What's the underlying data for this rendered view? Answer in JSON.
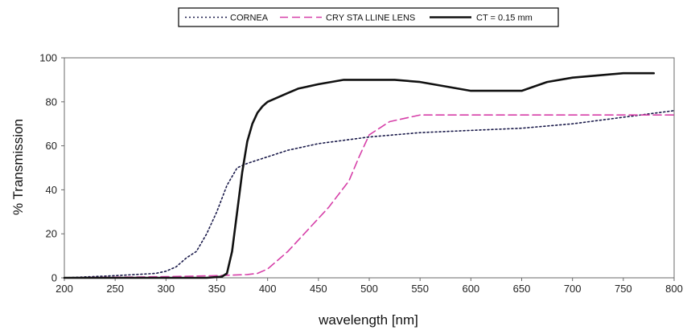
{
  "chart_data": {
    "type": "line",
    "xlabel": "wavelength [nm]",
    "ylabel": "% Transmission",
    "xlim": [
      200,
      800
    ],
    "ylim": [
      0,
      100
    ],
    "xticks": [
      "200",
      "250",
      "300",
      "350",
      "400",
      "450",
      "500",
      "550",
      "600",
      "650",
      "700",
      "750",
      "800"
    ],
    "yticks": [
      "0",
      "20",
      "40",
      "60",
      "80",
      "100"
    ],
    "grid": false,
    "legend_position": "top",
    "series": [
      {
        "name": "CORNEA",
        "color": "#1a1a4a",
        "style": "dotted",
        "x": [
          200,
          250,
          290,
          300,
          310,
          320,
          330,
          340,
          350,
          360,
          370,
          380,
          400,
          420,
          450,
          500,
          550,
          600,
          650,
          700,
          750,
          800
        ],
        "y": [
          0,
          1,
          2,
          3,
          5,
          9,
          12,
          20,
          30,
          42,
          50,
          52,
          55,
          58,
          61,
          64,
          66,
          67,
          68,
          70,
          73,
          76
        ]
      },
      {
        "name": "CRY STA LLINE LENS",
        "color": "#d63fa8",
        "style": "dashed",
        "x": [
          200,
          300,
          350,
          380,
          390,
          400,
          420,
          440,
          460,
          480,
          490,
          500,
          520,
          550,
          600,
          700,
          800
        ],
        "y": [
          0,
          0.5,
          1,
          1.5,
          2,
          4,
          12,
          22,
          32,
          44,
          55,
          65,
          71,
          74,
          74,
          74,
          74
        ]
      },
      {
        "name": "CT = 0.15 mm",
        "color": "#111111",
        "style": "solid",
        "x": [
          200,
          340,
          355,
          360,
          365,
          370,
          375,
          380,
          385,
          390,
          395,
          400,
          410,
          420,
          430,
          450,
          475,
          500,
          525,
          550,
          575,
          600,
          625,
          650,
          675,
          700,
          725,
          750,
          780
        ],
        "y": [
          0,
          0,
          0.5,
          2,
          12,
          30,
          48,
          62,
          70,
          75,
          78,
          80,
          82,
          84,
          86,
          88,
          90,
          90,
          90,
          89,
          87,
          85,
          85,
          85,
          89,
          91,
          92,
          93,
          93
        ]
      }
    ]
  }
}
